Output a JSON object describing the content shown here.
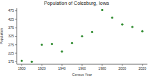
{
  "chart_data": {
    "type": "scatter",
    "title": "Population of Colesburg, Iowa",
    "x_label": "Census Year",
    "y_label": "Population",
    "x": [
      1900,
      1910,
      1920,
      1930,
      1940,
      1950,
      1960,
      1970,
      1980,
      1990,
      2000,
      2010,
      2020
    ],
    "values": [
      180,
      175,
      275,
      280,
      235,
      285,
      325,
      350,
      480,
      435,
      395,
      380,
      355
    ],
    "color": "#2e8b2e",
    "marker": "circle",
    "xlim": [
      1895,
      2025
    ],
    "xticks": [
      1900,
      1920,
      1940,
      1960,
      1980,
      2000,
      2020
    ],
    "ylim": [
      160,
      490
    ],
    "yticks": [
      175,
      225,
      275,
      325,
      375,
      425,
      475
    ],
    "grid": false
  }
}
